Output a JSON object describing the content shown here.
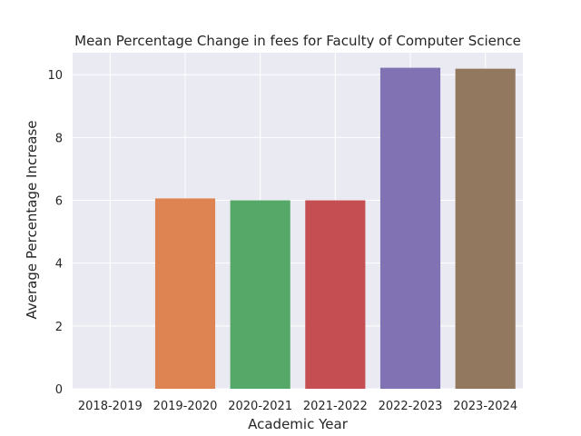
{
  "chart_data": {
    "type": "bar",
    "title": "Mean Percentage Change in fees for Faculty of Computer Science",
    "xlabel": "Academic Year",
    "ylabel": "Average Percentage Increase",
    "categories": [
      "2018-2019",
      "2019-2020",
      "2020-2021",
      "2021-2022",
      "2022-2023",
      "2023-2024"
    ],
    "values": [
      0,
      6.06,
      6.0,
      6.0,
      10.22,
      10.19
    ],
    "ylim": [
      0,
      10.7
    ],
    "yticks": [
      0,
      2,
      4,
      6,
      8,
      10
    ],
    "grid": true,
    "colors": [
      "#4c72b0",
      "#dd8452",
      "#55a868",
      "#c44e52",
      "#8172b3",
      "#937860"
    ],
    "background_color": "#eaeaf2"
  }
}
